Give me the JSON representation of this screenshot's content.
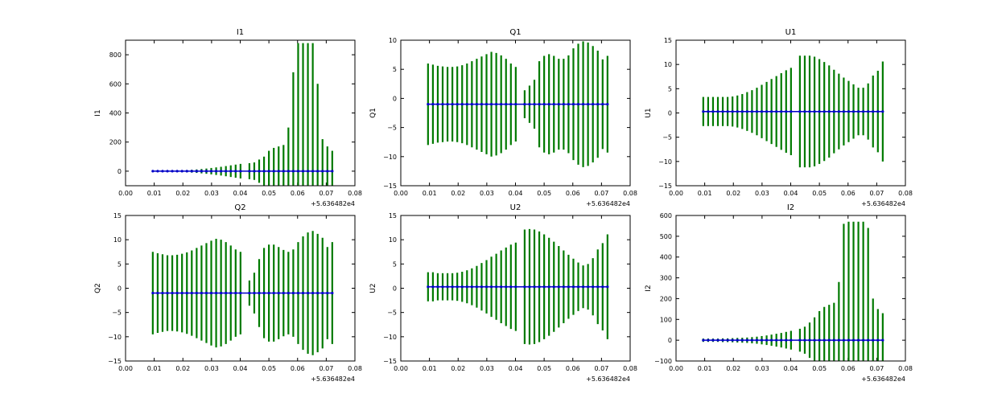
{
  "colors": {
    "errorbar": "#007a00",
    "marker": "#0000c8",
    "axis": "#000000",
    "background": "#ffffff"
  },
  "chart_data": [
    {
      "type": "errorbar",
      "title": "I1",
      "ylabel": "I1",
      "x_offset_label": "+5.636482e4",
      "xlim": [
        0.0,
        0.08
      ],
      "ylim": [
        -100,
        900
      ],
      "xticks": [
        "0.00",
        "0.01",
        "0.02",
        "0.03",
        "0.04",
        "0.05",
        "0.06",
        "0.07",
        "0.08"
      ],
      "yticks": [
        "0",
        "200",
        "400",
        "600",
        "800"
      ],
      "center": 0,
      "x": [
        0.0095,
        0.0112,
        0.0129,
        0.0146,
        0.0163,
        0.018,
        0.0197,
        0.0214,
        0.0231,
        0.0248,
        0.0265,
        0.0282,
        0.0299,
        0.0316,
        0.0333,
        0.035,
        0.0367,
        0.0384,
        0.0401,
        0.0432,
        0.0449,
        0.0466,
        0.0483,
        0.05,
        0.0517,
        0.0534,
        0.0551,
        0.0568,
        0.0585,
        0.0602,
        0.0619,
        0.0636,
        0.0653,
        0.067,
        0.0687,
        0.0704,
        0.0721
      ],
      "err": [
        5,
        5,
        5,
        5,
        6,
        6,
        7,
        8,
        10,
        12,
        15,
        18,
        22,
        26,
        30,
        35,
        40,
        45,
        50,
        55,
        60,
        80,
        100,
        140,
        160,
        170,
        180,
        300,
        680,
        880,
        880,
        880,
        880,
        600,
        220,
        170,
        140
      ]
    },
    {
      "type": "errorbar",
      "title": "Q1",
      "ylabel": "Q1",
      "x_offset_label": "+5.636482e4",
      "xlim": [
        0.0,
        0.08
      ],
      "ylim": [
        -15,
        10
      ],
      "xticks": [
        "0.00",
        "0.01",
        "0.02",
        "0.03",
        "0.04",
        "0.05",
        "0.06",
        "0.07",
        "0.08"
      ],
      "yticks": [
        "−15",
        "−10",
        "−5",
        "0",
        "5",
        "10"
      ],
      "center": -1,
      "x": [
        0.0095,
        0.0112,
        0.0129,
        0.0146,
        0.0163,
        0.018,
        0.0197,
        0.0214,
        0.0231,
        0.0248,
        0.0265,
        0.0282,
        0.0299,
        0.0316,
        0.0333,
        0.035,
        0.0367,
        0.0384,
        0.0401,
        0.0432,
        0.0449,
        0.0466,
        0.0483,
        0.05,
        0.0517,
        0.0534,
        0.0551,
        0.0568,
        0.0585,
        0.0602,
        0.0619,
        0.0636,
        0.0653,
        0.067,
        0.0687,
        0.0704,
        0.0721
      ],
      "err": [
        7,
        6.8,
        6.6,
        6.5,
        6.4,
        6.4,
        6.5,
        6.7,
        7,
        7.4,
        7.8,
        8.2,
        8.6,
        9,
        8.8,
        8.4,
        7.8,
        7,
        6.4,
        2.4,
        3.2,
        4.2,
        7.4,
        8.3,
        8.6,
        8.3,
        7.8,
        7.8,
        8.4,
        9.6,
        10.4,
        10.8,
        10.6,
        10,
        9.2,
        7.7,
        8.3
      ]
    },
    {
      "type": "errorbar",
      "title": "U1",
      "ylabel": "U1",
      "x_offset_label": "+5.636482e4",
      "xlim": [
        0.0,
        0.08
      ],
      "ylim": [
        -15,
        15
      ],
      "xticks": [
        "0.00",
        "0.01",
        "0.02",
        "0.03",
        "0.04",
        "0.05",
        "0.06",
        "0.07",
        "0.08"
      ],
      "yticks": [
        "−15",
        "−10",
        "−5",
        "0",
        "5",
        "10",
        "15"
      ],
      "center": 0.3,
      "x": [
        0.0095,
        0.0112,
        0.0129,
        0.0146,
        0.0163,
        0.018,
        0.0197,
        0.0214,
        0.0231,
        0.0248,
        0.0265,
        0.0282,
        0.0299,
        0.0316,
        0.0333,
        0.035,
        0.0367,
        0.0384,
        0.0401,
        0.0432,
        0.0449,
        0.0466,
        0.0483,
        0.05,
        0.0517,
        0.0534,
        0.0551,
        0.0568,
        0.0585,
        0.0602,
        0.0619,
        0.0636,
        0.0653,
        0.067,
        0.0687,
        0.0704,
        0.0721
      ],
      "err": [
        3,
        3,
        3,
        3,
        3,
        3,
        3.1,
        3.3,
        3.6,
        4,
        4.4,
        4.9,
        5.5,
        6.1,
        6.7,
        7.3,
        7.9,
        8.5,
        9,
        11.5,
        11.5,
        11.5,
        11.3,
        10.8,
        10.2,
        9.5,
        8.6,
        7.8,
        7,
        6.3,
        5.6,
        4.9,
        4.9,
        5.8,
        7.4,
        8.4,
        10.3
      ]
    },
    {
      "type": "errorbar",
      "title": "Q2",
      "ylabel": "Q2",
      "x_offset_label": "+5.636482e4",
      "xlim": [
        0.0,
        0.08
      ],
      "ylim": [
        -15,
        15
      ],
      "xticks": [
        "0.00",
        "0.01",
        "0.02",
        "0.03",
        "0.04",
        "0.05",
        "0.06",
        "0.07",
        "0.08"
      ],
      "yticks": [
        "−15",
        "−10",
        "−5",
        "0",
        "5",
        "10",
        "15"
      ],
      "center": -1,
      "x": [
        0.0095,
        0.0112,
        0.0129,
        0.0146,
        0.0163,
        0.018,
        0.0197,
        0.0214,
        0.0231,
        0.0248,
        0.0265,
        0.0282,
        0.0299,
        0.0316,
        0.0333,
        0.035,
        0.0367,
        0.0384,
        0.0401,
        0.0432,
        0.0449,
        0.0466,
        0.0483,
        0.05,
        0.0517,
        0.0534,
        0.0551,
        0.0568,
        0.0585,
        0.0602,
        0.0619,
        0.0636,
        0.0653,
        0.067,
        0.0687,
        0.0704,
        0.0721
      ],
      "err": [
        8.5,
        8.2,
        8,
        7.8,
        7.8,
        7.9,
        8.1,
        8.4,
        8.8,
        9.3,
        9.8,
        10.3,
        10.8,
        11.2,
        11,
        10.5,
        9.8,
        9,
        8.5,
        2.6,
        4.2,
        7,
        9.3,
        10,
        10,
        9.5,
        8.9,
        8.5,
        9,
        10.5,
        11.7,
        12.5,
        12.8,
        12.2,
        11.4,
        9.5,
        10.5
      ]
    },
    {
      "type": "errorbar",
      "title": "U2",
      "ylabel": "U2",
      "x_offset_label": "+5.636482e4",
      "xlim": [
        0.0,
        0.08
      ],
      "ylim": [
        -15,
        15
      ],
      "xticks": [
        "0.00",
        "0.01",
        "0.02",
        "0.03",
        "0.04",
        "0.05",
        "0.06",
        "0.07",
        "0.08"
      ],
      "yticks": [
        "−15",
        "−10",
        "−5",
        "0",
        "5",
        "10",
        "15"
      ],
      "center": 0.3,
      "x": [
        0.0095,
        0.0112,
        0.0129,
        0.0146,
        0.0163,
        0.018,
        0.0197,
        0.0214,
        0.0231,
        0.0248,
        0.0265,
        0.0282,
        0.0299,
        0.0316,
        0.0333,
        0.035,
        0.0367,
        0.0384,
        0.0401,
        0.0432,
        0.0449,
        0.0466,
        0.0483,
        0.05,
        0.0517,
        0.0534,
        0.0551,
        0.0568,
        0.0585,
        0.0602,
        0.0619,
        0.0636,
        0.0653,
        0.067,
        0.0687,
        0.0704,
        0.0721
      ],
      "err": [
        3,
        3,
        2.8,
        2.8,
        2.8,
        2.8,
        2.9,
        3.1,
        3.4,
        3.8,
        4.3,
        4.9,
        5.5,
        6.2,
        6.8,
        7.5,
        8.1,
        8.7,
        9.1,
        11.8,
        11.9,
        11.8,
        11.4,
        10.8,
        10.1,
        9.3,
        8.4,
        7.5,
        6.6,
        5.8,
        5,
        4.4,
        4.7,
        5.9,
        7.7,
        9,
        10.8
      ]
    },
    {
      "type": "errorbar",
      "title": "I2",
      "ylabel": "I2",
      "x_offset_label": "+5.636482e4",
      "xlim": [
        0.0,
        0.08
      ],
      "ylim": [
        -100,
        600
      ],
      "xticks": [
        "0.00",
        "0.01",
        "0.02",
        "0.03",
        "0.04",
        "0.05",
        "0.06",
        "0.07",
        "0.08"
      ],
      "yticks": [
        "−100",
        "0",
        "100",
        "200",
        "300",
        "400",
        "500",
        "600"
      ],
      "center": 0,
      "x": [
        0.0095,
        0.0112,
        0.0129,
        0.0146,
        0.0163,
        0.018,
        0.0197,
        0.0214,
        0.0231,
        0.0248,
        0.0265,
        0.0282,
        0.0299,
        0.0316,
        0.0333,
        0.035,
        0.0367,
        0.0384,
        0.0401,
        0.0432,
        0.0449,
        0.0466,
        0.0483,
        0.05,
        0.0517,
        0.0534,
        0.0551,
        0.0568,
        0.0585,
        0.0602,
        0.0619,
        0.0636,
        0.0653,
        0.067,
        0.0687,
        0.0704,
        0.0721
      ],
      "err": [
        8,
        8,
        8,
        8,
        9,
        9,
        10,
        11,
        12,
        13,
        15,
        17,
        20,
        23,
        27,
        31,
        35,
        40,
        45,
        55,
        65,
        85,
        110,
        140,
        160,
        170,
        180,
        280,
        560,
        570,
        570,
        570,
        570,
        540,
        200,
        150,
        130
      ]
    }
  ]
}
